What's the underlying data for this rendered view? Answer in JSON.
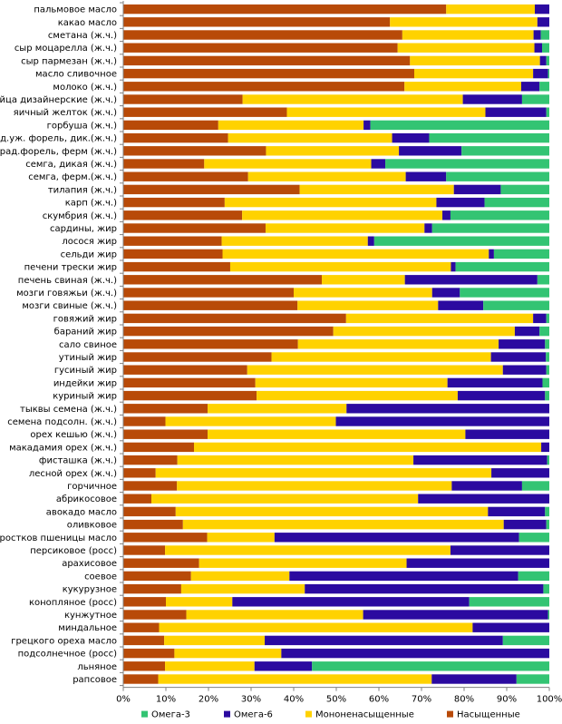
{
  "chart_data": {
    "type": "bar",
    "orientation": "horizontal",
    "stacked": "percent",
    "xlim": [
      0,
      100
    ],
    "xticks": [
      "0%",
      "10%",
      "20%",
      "30%",
      "40%",
      "50%",
      "60%",
      "70%",
      "80%",
      "90%",
      "100%"
    ],
    "grid": false,
    "legend": {
      "position": "bottom"
    },
    "categories": [
      "пальмовое масло",
      "какао масло",
      "сметана (ж.ч.)",
      "сыр моцарелла (ж.ч.)",
      "сыр пармезан (ж.ч.)",
      "масло сливочное",
      "молоко (ж.ч.)",
      "яйца дизайнерские (ж.ч.)",
      "яичный желток (ж.ч.)",
      "горбуша (ж.ч.)",
      "рад.уж. форель, дик.(ж.ч.)",
      "рад.форель, ферм (ж.ч.)",
      "семга, дикая (ж.ч.)",
      "семга, ферм.(ж.ч.)",
      "тилапия (ж.ч.)",
      "карп (ж.ч.)",
      "скумбрия (ж.ч.)",
      "сардины, жир",
      "лосося жир",
      "сельди жир",
      "печени трески жир",
      "печень свиная (ж.ч.)",
      "мозги говяжьи (ж.ч.)",
      "мозги свиные (ж.ч.)",
      "говяжий жир",
      "бараний жир",
      "сало свиное",
      "утиный жир",
      "гусиный жир",
      "индейки жир",
      "куриный жир",
      "тыквы семена (ж.ч.)",
      "семена подсолн. (ж.ч.)",
      "орех кешью (ж.ч.)",
      "макадамия орех (ж.ч.)",
      "фисташка (ж.ч.)",
      "лесной орех (ж.ч.)",
      "горчичное",
      "абрикосовое",
      "авокадо масло",
      "оливковое",
      "ростков пшеницы масло",
      "персиковое (росс)",
      "арахисовое",
      "соевое",
      "кукурузное",
      "конопляное (росс)",
      "кунжутное",
      "миндальное",
      "грецкого ореха масло",
      "подсолнечное (росс)",
      "льняное",
      "рапсовое"
    ],
    "series": [
      {
        "name": "Насыщенные",
        "color": "#B84A08",
        "values": [
          75.8,
          62.6,
          65.5,
          64.4,
          67.3,
          68.3,
          66.0,
          28.0,
          38.4,
          22.3,
          24.6,
          33.5,
          19.0,
          29.3,
          41.4,
          23.8,
          27.9,
          33.4,
          23.1,
          23.3,
          25.1,
          46.6,
          40.0,
          40.9,
          52.3,
          49.3,
          41.0,
          34.8,
          29.1,
          31.0,
          31.3,
          19.8,
          9.9,
          19.8,
          16.6,
          12.7,
          7.6,
          12.6,
          6.6,
          12.3,
          14.0,
          19.7,
          9.8,
          17.8,
          15.9,
          13.6,
          10.0,
          14.8,
          8.4,
          9.6,
          12.0,
          9.8,
          8.2
        ]
      },
      {
        "name": "Мононенасыщенные",
        "color": "#FFD200",
        "values": [
          20.8,
          34.6,
          30.8,
          32.1,
          30.5,
          27.9,
          27.4,
          51.7,
          46.6,
          34.1,
          38.5,
          31.2,
          39.2,
          37.0,
          36.2,
          49.7,
          47.0,
          37.3,
          34.3,
          62.5,
          51.8,
          19.5,
          32.5,
          33.0,
          43.9,
          42.6,
          47.1,
          51.5,
          60.0,
          45.1,
          47.2,
          32.6,
          40.0,
          60.5,
          81.5,
          55.4,
          78.8,
          64.5,
          62.6,
          73.3,
          75.3,
          15.8,
          67.0,
          48.7,
          23.1,
          29.0,
          15.6,
          41.5,
          73.6,
          23.6,
          25.1,
          21.0,
          64.2
        ]
      },
      {
        "name": "Омега-6",
        "color": "#2B0AA0",
        "values": [
          3.4,
          2.8,
          1.7,
          1.8,
          1.5,
          3.5,
          4.3,
          13.9,
          14.3,
          1.6,
          8.7,
          14.7,
          3.3,
          9.5,
          11.0,
          11.3,
          1.9,
          1.8,
          1.5,
          1.2,
          1.1,
          31.1,
          6.5,
          10.6,
          3.1,
          5.8,
          10.9,
          12.9,
          10.2,
          22.3,
          20.5,
          47.6,
          50.1,
          19.7,
          1.9,
          31.4,
          13.6,
          16.5,
          30.8,
          13.4,
          10.0,
          57.4,
          23.2,
          33.5,
          53.7,
          56.0,
          55.6,
          43.4,
          18.0,
          55.9,
          62.9,
          13.5,
          19.9
        ]
      },
      {
        "name": "Омега-3",
        "color": "#33C473",
        "values": [
          0.0,
          0.0,
          2.0,
          1.7,
          0.7,
          0.3,
          2.3,
          6.4,
          0.7,
          42.0,
          28.2,
          20.6,
          38.5,
          24.2,
          11.4,
          15.2,
          23.2,
          27.5,
          41.1,
          13.0,
          22.0,
          2.8,
          21.0,
          15.5,
          0.7,
          2.3,
          1.0,
          0.8,
          0.7,
          1.6,
          1.0,
          0.0,
          0.0,
          0.0,
          0.0,
          0.5,
          0.0,
          6.4,
          0.0,
          1.0,
          0.7,
          7.1,
          0.0,
          0.0,
          7.3,
          1.4,
          18.8,
          0.3,
          0.0,
          10.9,
          0.0,
          55.7,
          7.7
        ]
      }
    ],
    "legend_order": [
      "Омега-3",
      "Омега-6",
      "Мононенасыщенные",
      "Насыщенные"
    ]
  }
}
